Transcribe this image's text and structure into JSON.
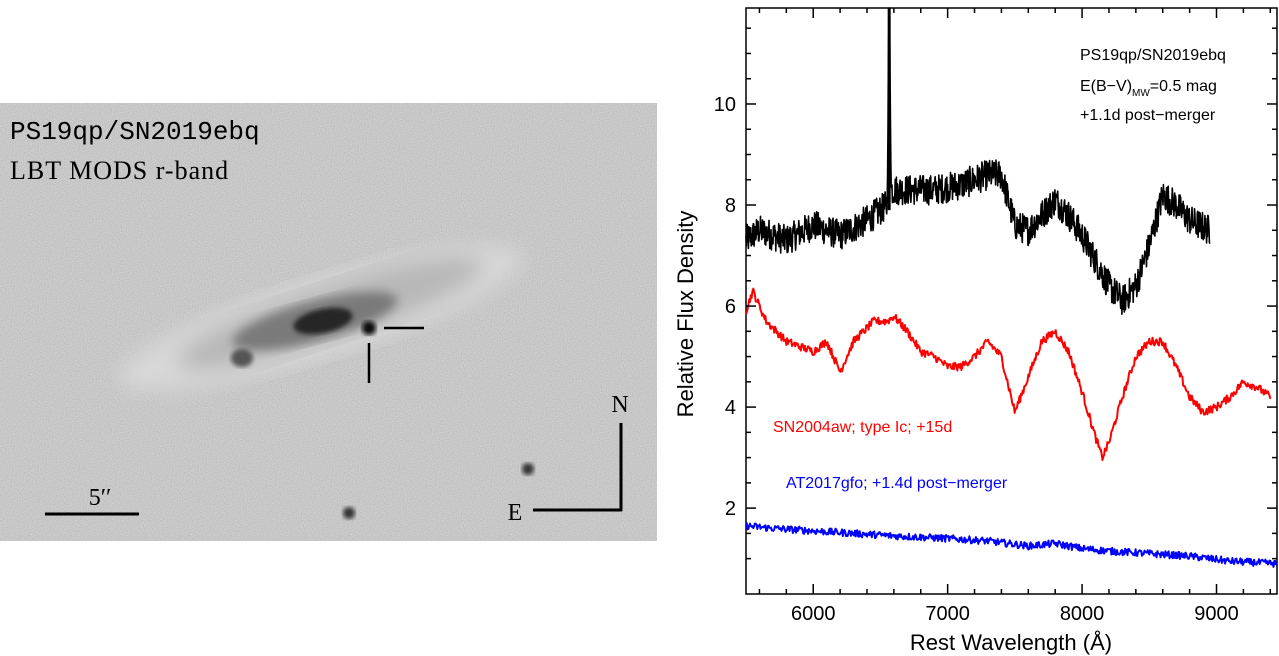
{
  "image_panel": {
    "title_line1": "PS19qp/SN2019ebq",
    "title_line2": "LBT MODS r-band",
    "scale_label": "5′′",
    "compass_north": "N",
    "compass_east": "E",
    "colors": {
      "background": "#f2f2f2",
      "ink": "#000000"
    }
  },
  "chart_data": {
    "type": "line",
    "xlabel": "Rest Wavelength (Å)",
    "ylabel": "Relative Flux Density",
    "xlim": [
      5500,
      9450
    ],
    "ylim": [
      0.3,
      11.9
    ],
    "xticks": [
      6000,
      7000,
      8000,
      9000
    ],
    "yticks": [
      2,
      4,
      6,
      8,
      10
    ],
    "annotation_lines": [
      "PS19qp/SN2019ebq",
      "E(B−V)",
      "MW",
      "=0.5 mag",
      "+1.1d post−merger"
    ],
    "series": [
      {
        "name": "PS19qp/SN2019ebq",
        "color": "#000000",
        "noisy": true,
        "noise": 0.3,
        "x": [
          5500,
          5600,
          5800,
          6000,
          6200,
          6400,
          6550,
          6565,
          6580,
          6700,
          6900,
          7100,
          7300,
          7400,
          7500,
          7600,
          7700,
          7800,
          7900,
          8000,
          8100,
          8200,
          8300,
          8400,
          8500,
          8600,
          8700,
          8800,
          8950
        ],
        "y": [
          7.3,
          7.5,
          7.3,
          7.6,
          7.4,
          7.7,
          8.0,
          12.5,
          8.3,
          8.3,
          8.3,
          8.4,
          8.6,
          8.6,
          7.6,
          7.5,
          7.8,
          8.1,
          7.8,
          7.4,
          6.9,
          6.4,
          6.1,
          6.4,
          7.2,
          8.2,
          8.0,
          7.7,
          7.5
        ]
      },
      {
        "name": "SN2004aw; type Ic; +15d",
        "color": "#ff0000",
        "noisy": true,
        "noise": 0.08,
        "x": [
          5500,
          5550,
          5650,
          5800,
          6000,
          6100,
          6200,
          6300,
          6450,
          6550,
          6600,
          6700,
          6800,
          6900,
          7000,
          7100,
          7200,
          7300,
          7400,
          7500,
          7600,
          7700,
          7800,
          7900,
          8000,
          8100,
          8150,
          8200,
          8300,
          8400,
          8500,
          8600,
          8700,
          8800,
          8900,
          9000,
          9100,
          9200,
          9300,
          9400
        ],
        "y": [
          5.9,
          6.3,
          5.7,
          5.3,
          5.1,
          5.3,
          4.7,
          5.3,
          5.7,
          5.7,
          5.8,
          5.5,
          5.1,
          5.0,
          4.8,
          4.8,
          5.0,
          5.3,
          5.0,
          3.9,
          4.6,
          5.3,
          5.5,
          5.1,
          4.3,
          3.4,
          3.0,
          3.3,
          4.2,
          5.0,
          5.3,
          5.3,
          4.8,
          4.2,
          3.9,
          4.0,
          4.2,
          4.5,
          4.4,
          4.2
        ]
      },
      {
        "name": "AT2017gfo; +1.4d post−merger",
        "color": "#0000ff",
        "noisy": true,
        "noise": 0.07,
        "x": [
          5500,
          5700,
          6000,
          6300,
          6600,
          7000,
          7300,
          7600,
          7800,
          8000,
          8200,
          8500,
          8800,
          9100,
          9450
        ],
        "y": [
          1.65,
          1.6,
          1.55,
          1.5,
          1.45,
          1.4,
          1.35,
          1.25,
          1.3,
          1.2,
          1.15,
          1.1,
          1.05,
          0.95,
          0.9
        ]
      }
    ]
  }
}
